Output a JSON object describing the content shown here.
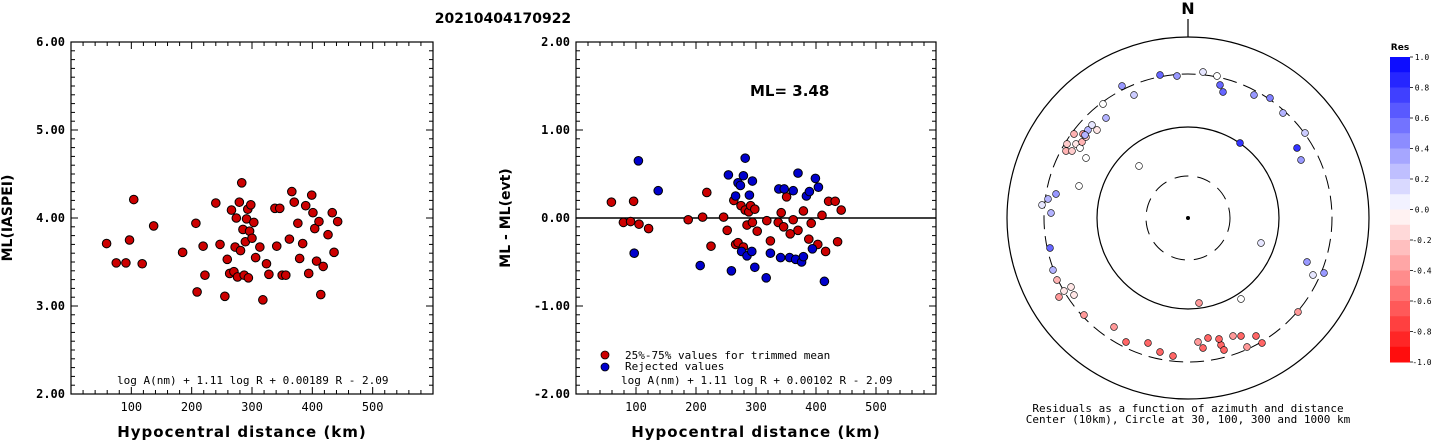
{
  "title": "20210404170922",
  "chart_data": [
    {
      "type": "scatter",
      "xlabel": "Hypocentral distance (km)",
      "ylabel": "ML(IASPEI)",
      "xlim": [
        0,
        600
      ],
      "ylim": [
        2.0,
        6.0
      ],
      "xticks": [
        "100",
        "200",
        "300",
        "400",
        "500"
      ],
      "yticks": [
        "2.00",
        "3.00",
        "4.00",
        "5.00",
        "6.00"
      ],
      "formula": "log A(nm) + 1.11 log R + 0.00189 R - 2.09",
      "series": [
        {
          "color": "#cc0000",
          "points": [
            [
              59,
              3.71
            ],
            [
              75,
              3.49
            ],
            [
              91,
              3.49
            ],
            [
              97,
              3.75
            ],
            [
              104,
              4.21
            ],
            [
              118,
              3.48
            ],
            [
              137,
              3.91
            ],
            [
              185,
              3.61
            ],
            [
              207,
              3.94
            ],
            [
              209,
              3.16
            ],
            [
              219,
              3.68
            ],
            [
              222,
              3.35
            ],
            [
              240,
              4.17
            ],
            [
              247,
              3.7
            ],
            [
              255,
              3.11
            ],
            [
              259,
              3.53
            ],
            [
              263,
              3.37
            ],
            [
              266,
              4.09
            ],
            [
              270,
              3.39
            ],
            [
              272,
              3.67
            ],
            [
              274,
              4.0
            ],
            [
              276,
              3.33
            ],
            [
              279,
              4.18
            ],
            [
              281,
              3.63
            ],
            [
              283,
              4.4
            ],
            [
              285,
              3.87
            ],
            [
              287,
              3.35
            ],
            [
              289,
              3.73
            ],
            [
              291,
              3.99
            ],
            [
              293,
              4.1
            ],
            [
              294,
              3.32
            ],
            [
              296,
              3.85
            ],
            [
              298,
              4.15
            ],
            [
              300,
              3.77
            ],
            [
              303,
              3.95
            ],
            [
              306,
              3.55
            ],
            [
              313,
              3.67
            ],
            [
              318,
              3.07
            ],
            [
              324,
              3.48
            ],
            [
              328,
              3.36
            ],
            [
              338,
              4.11
            ],
            [
              341,
              3.68
            ],
            [
              346,
              4.11
            ],
            [
              350,
              3.35
            ],
            [
              356,
              3.35
            ],
            [
              362,
              3.76
            ],
            [
              366,
              4.3
            ],
            [
              370,
              4.18
            ],
            [
              376,
              3.94
            ],
            [
              379,
              3.54
            ],
            [
              384,
              3.71
            ],
            [
              389,
              4.14
            ],
            [
              394,
              3.37
            ],
            [
              399,
              4.26
            ],
            [
              401,
              4.06
            ],
            [
              404,
              3.88
            ],
            [
              407,
              3.51
            ],
            [
              411,
              3.96
            ],
            [
              414,
              3.13
            ],
            [
              418,
              3.45
            ],
            [
              426,
              3.81
            ],
            [
              433,
              4.06
            ],
            [
              436,
              3.61
            ],
            [
              442,
              3.96
            ]
          ]
        }
      ]
    },
    {
      "type": "scatter",
      "xlabel": "Hypocentral distance (km)",
      "ylabel": "ML - ML(evt)",
      "xlim": [
        0,
        600
      ],
      "ylim": [
        -2.0,
        2.0
      ],
      "xticks": [
        "100",
        "200",
        "300",
        "400",
        "500"
      ],
      "yticks": [
        "-2.00",
        "-1.00",
        "0.00",
        "1.00",
        "2.00"
      ],
      "annotation": "ML= 3.48",
      "formula": "log A(nm) + 1.11 log R + 0.00102 R - 2.09",
      "legend": [
        {
          "label": "25%-75% values for trimmed mean",
          "color": "#cc0000"
        },
        {
          "label": "Rejected values",
          "color": "#0000cc"
        }
      ],
      "series": [
        {
          "name": "25%-75% values for trimmed mean",
          "color": "#cc0000",
          "points": [
            [
              59,
              0.18
            ],
            [
              79,
              -0.05
            ],
            [
              91,
              -0.04
            ],
            [
              96,
              0.19
            ],
            [
              105,
              -0.07
            ],
            [
              121,
              -0.12
            ],
            [
              187,
              -0.02
            ],
            [
              211,
              0.01
            ],
            [
              218,
              0.29
            ],
            [
              225,
              -0.32
            ],
            [
              246,
              0.01
            ],
            [
              252,
              -0.14
            ],
            [
              263,
              0.2
            ],
            [
              266,
              -0.3
            ],
            [
              270,
              -0.28
            ],
            [
              275,
              0.14
            ],
            [
              279,
              -0.33
            ],
            [
              282,
              0.09
            ],
            [
              285,
              -0.08
            ],
            [
              288,
              0.07
            ],
            [
              291,
              0.14
            ],
            [
              294,
              -0.05
            ],
            [
              298,
              0.1
            ],
            [
              302,
              -0.15
            ],
            [
              318,
              -0.03
            ],
            [
              324,
              -0.26
            ],
            [
              337,
              -0.05
            ],
            [
              342,
              0.06
            ],
            [
              346,
              -0.1
            ],
            [
              351,
              0.24
            ],
            [
              357,
              -0.18
            ],
            [
              362,
              -0.02
            ],
            [
              370,
              -0.14
            ],
            [
              379,
              0.08
            ],
            [
              388,
              -0.24
            ],
            [
              392,
              -0.06
            ],
            [
              403,
              -0.3
            ],
            [
              410,
              0.03
            ],
            [
              416,
              -0.38
            ],
            [
              421,
              0.19
            ],
            [
              432,
              0.19
            ],
            [
              436,
              -0.27
            ],
            [
              442,
              0.09
            ]
          ]
        },
        {
          "name": "Rejected values",
          "color": "#0000cc",
          "points": [
            [
              97,
              -0.4
            ],
            [
              104,
              0.65
            ],
            [
              137,
              0.31
            ],
            [
              207,
              -0.54
            ],
            [
              254,
              0.49
            ],
            [
              259,
              -0.6
            ],
            [
              266,
              0.25
            ],
            [
              270,
              0.4
            ],
            [
              274,
              0.37
            ],
            [
              276,
              -0.38
            ],
            [
              279,
              0.48
            ],
            [
              282,
              0.68
            ],
            [
              285,
              -0.43
            ],
            [
              289,
              0.26
            ],
            [
              293,
              -0.38
            ],
            [
              294,
              0.42
            ],
            [
              298,
              -0.56
            ],
            [
              317,
              -0.68
            ],
            [
              324,
              -0.4
            ],
            [
              338,
              0.33
            ],
            [
              341,
              -0.45
            ],
            [
              347,
              0.33
            ],
            [
              356,
              -0.45
            ],
            [
              362,
              0.31
            ],
            [
              366,
              -0.47
            ],
            [
              370,
              0.51
            ],
            [
              376,
              -0.5
            ],
            [
              379,
              -0.44
            ],
            [
              384,
              0.25
            ],
            [
              389,
              0.3
            ],
            [
              394,
              -0.35
            ],
            [
              399,
              0.45
            ],
            [
              404,
              0.35
            ],
            [
              414,
              -0.72
            ]
          ]
        }
      ]
    },
    {
      "type": "scatter",
      "subtype": "polar",
      "north_label": "N",
      "caption_line1": "Residuals as a function of azimuth and distance",
      "caption_line2": "Center (10km), Circle at 30, 100, 300 and 1000 km",
      "colorbar_title": "Res",
      "colorbar_ticks": [
        "1.0",
        "0.8",
        "0.6",
        "0.4",
        "0.2",
        "0.0",
        "-0.2",
        "-0.4",
        "-0.6",
        "-0.8",
        "-1.0"
      ],
      "series": [
        {
          "points": [
            [
              1139,
              166,
              0.0
            ],
            [
              1103,
              104,
              0.0
            ],
            [
              1097,
              130,
              -0.1
            ],
            [
              1106,
              118,
              0.3
            ],
            [
              1086,
              158,
              0.0
            ],
            [
              1076,
              144,
              -0.1
            ],
            [
              1080,
              148,
              0.0
            ],
            [
              1082,
              142,
              -0.3
            ],
            [
              1074,
              134,
              -0.3
            ],
            [
              1083,
              134,
              -0.4
            ],
            [
              1067,
              144,
              -0.2
            ],
            [
              1066,
              151,
              -0.3
            ],
            [
              1072,
              151,
              -0.2
            ],
            [
              1086,
              137,
              -0.2
            ],
            [
              1088,
              130,
              0.3
            ],
            [
              1085,
              135,
              0.3
            ],
            [
              1092,
              125,
              0.1
            ],
            [
              1079,
              186,
              0.0
            ],
            [
              1042,
              205,
              0.1
            ],
            [
              1048,
              199,
              0.3
            ],
            [
              1051,
              213,
              0.3
            ],
            [
              1056,
              194,
              0.4
            ],
            [
              1122,
              86,
              0.4
            ],
            [
              1134,
              95,
              0.2
            ],
            [
              1160,
              75,
              0.6
            ],
            [
              1177,
              76,
              0.4
            ],
            [
              1203,
              72,
              0.1
            ],
            [
              1217,
              76,
              0.0
            ],
            [
              1220,
              85,
              0.6
            ],
            [
              1223,
              92,
              0.6
            ],
            [
              1254,
              95,
              0.4
            ],
            [
              1270,
              98,
              0.5
            ],
            [
              1283,
              113,
              0.3
            ],
            [
              1305,
              133,
              0.2
            ],
            [
              1297,
              148,
              0.8
            ],
            [
              1301,
              160,
              0.4
            ],
            [
              1240,
              143,
              0.8
            ],
            [
              1050,
              248,
              0.6
            ],
            [
              1053,
              270,
              0.3
            ],
            [
              1057,
              280,
              -0.3
            ],
            [
              1064,
              291,
              -0.1
            ],
            [
              1071,
              287,
              -0.1
            ],
            [
              1074,
              295,
              -0.1
            ],
            [
              1059,
              297,
              -0.4
            ],
            [
              1084,
              315,
              -0.4
            ],
            [
              1114,
              327,
              -0.4
            ],
            [
              1126,
              342,
              -0.6
            ],
            [
              1148,
              343,
              -0.6
            ],
            [
              1160,
              352,
              -0.6
            ],
            [
              1173,
              356,
              -0.6
            ],
            [
              1198,
              342,
              -0.4
            ],
            [
              1203,
              348,
              -0.6
            ],
            [
              1208,
              338,
              -0.6
            ],
            [
              1221,
              345,
              -0.6
            ],
            [
              1224,
              350,
              -0.6
            ],
            [
              1219,
              339,
              -0.6
            ],
            [
              1233,
              336,
              -0.4
            ],
            [
              1241,
              336,
              -0.6
            ],
            [
              1247,
              347,
              -0.4
            ],
            [
              1256,
              336,
              -0.6
            ],
            [
              1262,
              343,
              -0.6
            ],
            [
              1199,
              303,
              -0.4
            ],
            [
              1241,
              299,
              0.0
            ],
            [
              1261,
              243,
              0.1
            ],
            [
              1298,
              312,
              -0.4
            ],
            [
              1307,
              262,
              0.4
            ],
            [
              1313,
              275,
              0.1
            ],
            [
              1324,
              273,
              0.4
            ]
          ]
        }
      ]
    }
  ]
}
